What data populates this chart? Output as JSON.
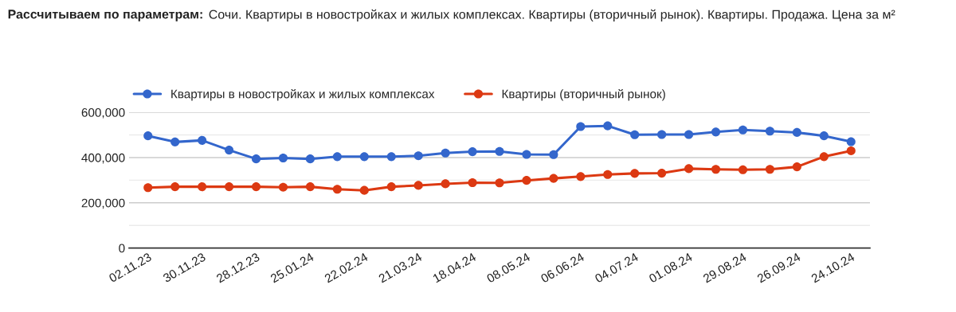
{
  "chart_data": {
    "type": "line",
    "title": "Рассчитываем по параметрам:",
    "subtitle": "Сочи. Квартиры в новостройках и жилых комплексах. Квартиры (вторичный рынок). Квартиры. Продажа. Цена за м²",
    "categories": [
      "02.11.23",
      null,
      "30.11.23",
      null,
      "28.12.23",
      null,
      "25.01.24",
      null,
      "22.02.24",
      null,
      "21.03.24",
      null,
      "18.04.24",
      null,
      "08.05.24",
      null,
      "06.06.24",
      null,
      "04.07.24",
      null,
      "01.08.24",
      null,
      "29.08.24",
      null,
      "26.09.24",
      null,
      "24.10.24"
    ],
    "series": [
      {
        "name": "Квартиры в новостройках и жилых комплексах",
        "color": "#3366cc",
        "values": [
          496000,
          469000,
          476000,
          433000,
          394000,
          398000,
          394000,
          404000,
          404000,
          404000,
          408000,
          420000,
          426000,
          427000,
          414000,
          413000,
          537000,
          540000,
          501000,
          502000,
          502000,
          513000,
          522000,
          517000,
          511000,
          496000,
          470000
        ]
      },
      {
        "name": "Квартиры (вторичный рынок)",
        "color": "#dc3912",
        "values": [
          267000,
          271000,
          271000,
          271000,
          271000,
          269000,
          271000,
          260000,
          255000,
          271000,
          277000,
          284000,
          289000,
          288000,
          299000,
          308000,
          316000,
          325000,
          330000,
          331000,
          351000,
          348000,
          346000,
          348000,
          359000,
          404000,
          430000
        ]
      }
    ],
    "ylim": [
      0,
      600000
    ],
    "yticks": [
      {
        "value": 0,
        "label": "0"
      },
      {
        "value": 100000,
        "label": null
      },
      {
        "value": 200000,
        "label": "200,000"
      },
      {
        "value": 300000,
        "label": null
      },
      {
        "value": 400000,
        "label": "400,000"
      },
      {
        "value": 500000,
        "label": null
      },
      {
        "value": 600000,
        "label": "600,000"
      }
    ],
    "grid": "y",
    "legend": "top",
    "marker": "circle",
    "line_style": "solid"
  }
}
